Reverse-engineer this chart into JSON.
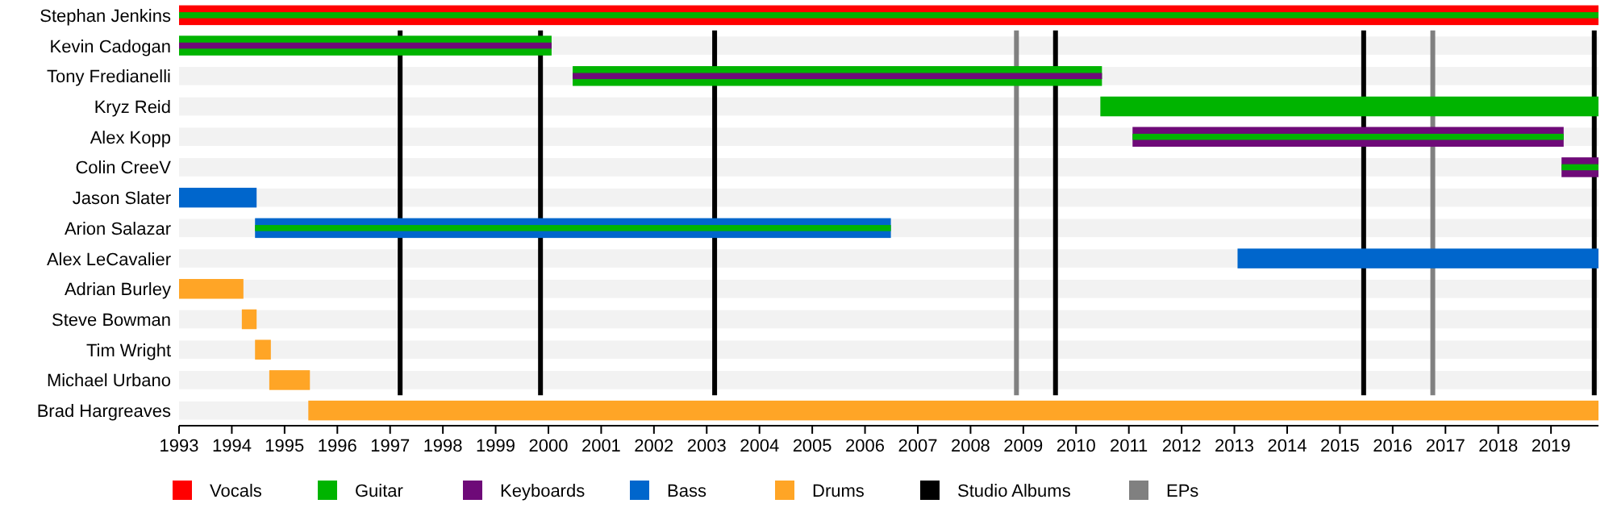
{
  "chart_data": {
    "type": "bar",
    "orientation": "horizontal",
    "categories": [
      "Stephan Jenkins",
      "Kevin Cadogan",
      "Tony Fredianelli",
      "Kryz Reid",
      "Alex Kopp",
      "Colin CreeV",
      "Jason Slater",
      "Arion Salazar",
      "Alex LeCavalier",
      "Adrian Burley",
      "Steve Bowman",
      "Tim Wright",
      "Michael Urbano",
      "Brad Hargreaves"
    ],
    "xlim": [
      1993,
      2019.9
    ],
    "xticks": [
      1993,
      1994,
      1995,
      1996,
      1997,
      1998,
      1999,
      2000,
      2001,
      2002,
      2003,
      2004,
      2005,
      2006,
      2007,
      2008,
      2009,
      2010,
      2011,
      2012,
      2013,
      2014,
      2015,
      2016,
      2017,
      2018,
      2019
    ],
    "legend": "bottom",
    "series": [
      {
        "name": "Vocals",
        "color": "#ff0000",
        "base": [
          1993,
          null,
          null,
          null,
          null,
          null,
          null,
          null,
          null,
          null,
          null,
          null,
          null,
          null
        ],
        "values": [
          26.9,
          null,
          null,
          null,
          null,
          null,
          null,
          null,
          null,
          null,
          null,
          null,
          null,
          null
        ]
      },
      {
        "name": "Guitar",
        "color": "#00b400",
        "base": [
          null,
          1993,
          2000.46,
          2010.46,
          null,
          null,
          null,
          null,
          null,
          null,
          null,
          null,
          null,
          null
        ],
        "values": [
          null,
          7.06,
          10.03,
          9.44,
          null,
          null,
          null,
          null,
          null,
          null,
          null,
          null,
          null,
          null
        ]
      },
      {
        "name": "Keyboards",
        "color": "#6e0a78",
        "base": [
          null,
          null,
          null,
          null,
          2011.07,
          2019.2,
          null,
          null,
          null,
          null,
          null,
          null,
          null,
          null
        ],
        "values": [
          null,
          null,
          null,
          null,
          8.17,
          0.7,
          null,
          null,
          null,
          null,
          null,
          null,
          null,
          null
        ]
      },
      {
        "name": "Bass",
        "color": "#0066cc",
        "base": [
          null,
          null,
          null,
          null,
          null,
          null,
          1993,
          1994.44,
          2013.06,
          null,
          null,
          null,
          null,
          null
        ],
        "values": [
          null,
          null,
          null,
          null,
          null,
          null,
          1.47,
          12.05,
          6.84,
          null,
          null,
          null,
          null,
          null
        ]
      },
      {
        "name": "Drums",
        "color": "#ffa526",
        "base": [
          null,
          null,
          null,
          null,
          null,
          null,
          null,
          null,
          null,
          1993,
          1994.19,
          1994.44,
          1994.71,
          1995.45
        ],
        "values": [
          null,
          null,
          null,
          null,
          null,
          null,
          null,
          null,
          null,
          1.22,
          0.28,
          0.3,
          0.77,
          24.45
        ]
      },
      {
        "color": "#00b400",
        "base": [
          1993,
          null,
          null,
          null,
          2011.07,
          2019.2,
          null,
          1994.44,
          null,
          null,
          null,
          null,
          null,
          null
        ],
        "values": [
          26.9,
          null,
          null,
          null,
          8.17,
          0.7,
          null,
          12.05,
          null,
          null,
          null,
          null,
          null,
          null
        ]
      },
      {
        "color": "#6e0a78",
        "base": [
          null,
          1993,
          2000.46,
          null,
          null,
          null,
          null,
          null,
          null,
          null,
          null,
          null,
          null,
          null
        ],
        "values": [
          null,
          7.06,
          10.03,
          null,
          null,
          null,
          null,
          null,
          null,
          null,
          null,
          null,
          null,
          null
        ]
      }
    ],
    "ref_lines": [
      {
        "axis": "x",
        "value": 1997.19,
        "label": "Studio Albums",
        "color": "#000000"
      },
      {
        "axis": "x",
        "value": 1999.85,
        "color": "#000000"
      },
      {
        "axis": "x",
        "value": 2003.15,
        "color": "#000000"
      },
      {
        "axis": "x",
        "value": 2009.61,
        "color": "#000000"
      },
      {
        "axis": "x",
        "value": 2015.45,
        "color": "#000000"
      },
      {
        "axis": "x",
        "value": 2019.82,
        "color": "#000000"
      },
      {
        "axis": "x",
        "value": 2008.87,
        "label": "EPs",
        "color": "#808080"
      },
      {
        "axis": "x",
        "value": 2016.76,
        "color": "#808080"
      }
    ]
  }
}
